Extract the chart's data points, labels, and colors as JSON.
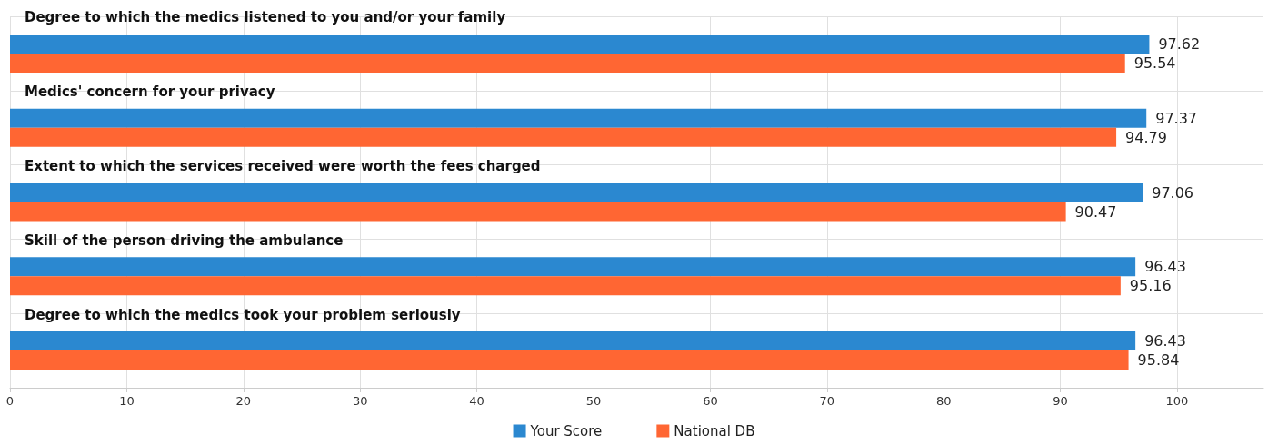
{
  "chart_data": {
    "type": "bar",
    "orientation": "horizontal",
    "categories": [
      "Degree to which the medics listened to you and/or your family",
      "Medics' concern for your privacy",
      "Extent to which the services received were worth the fees charged",
      "Skill of the person driving the ambulance",
      "Degree to which the medics took your problem seriously"
    ],
    "series": [
      {
        "name": "Your Score",
        "color": "#2b88d0",
        "values": [
          97.62,
          97.37,
          97.06,
          96.43,
          96.43
        ]
      },
      {
        "name": "National DB",
        "color": "#ff6633",
        "values": [
          95.54,
          94.79,
          90.47,
          95.16,
          95.84
        ]
      }
    ],
    "xlim": [
      0,
      107.4
    ],
    "xticks": [
      0,
      10,
      20,
      30,
      40,
      50,
      60,
      70,
      80,
      90,
      100
    ],
    "grid": true,
    "legend": "bottom",
    "data_labels": true
  }
}
